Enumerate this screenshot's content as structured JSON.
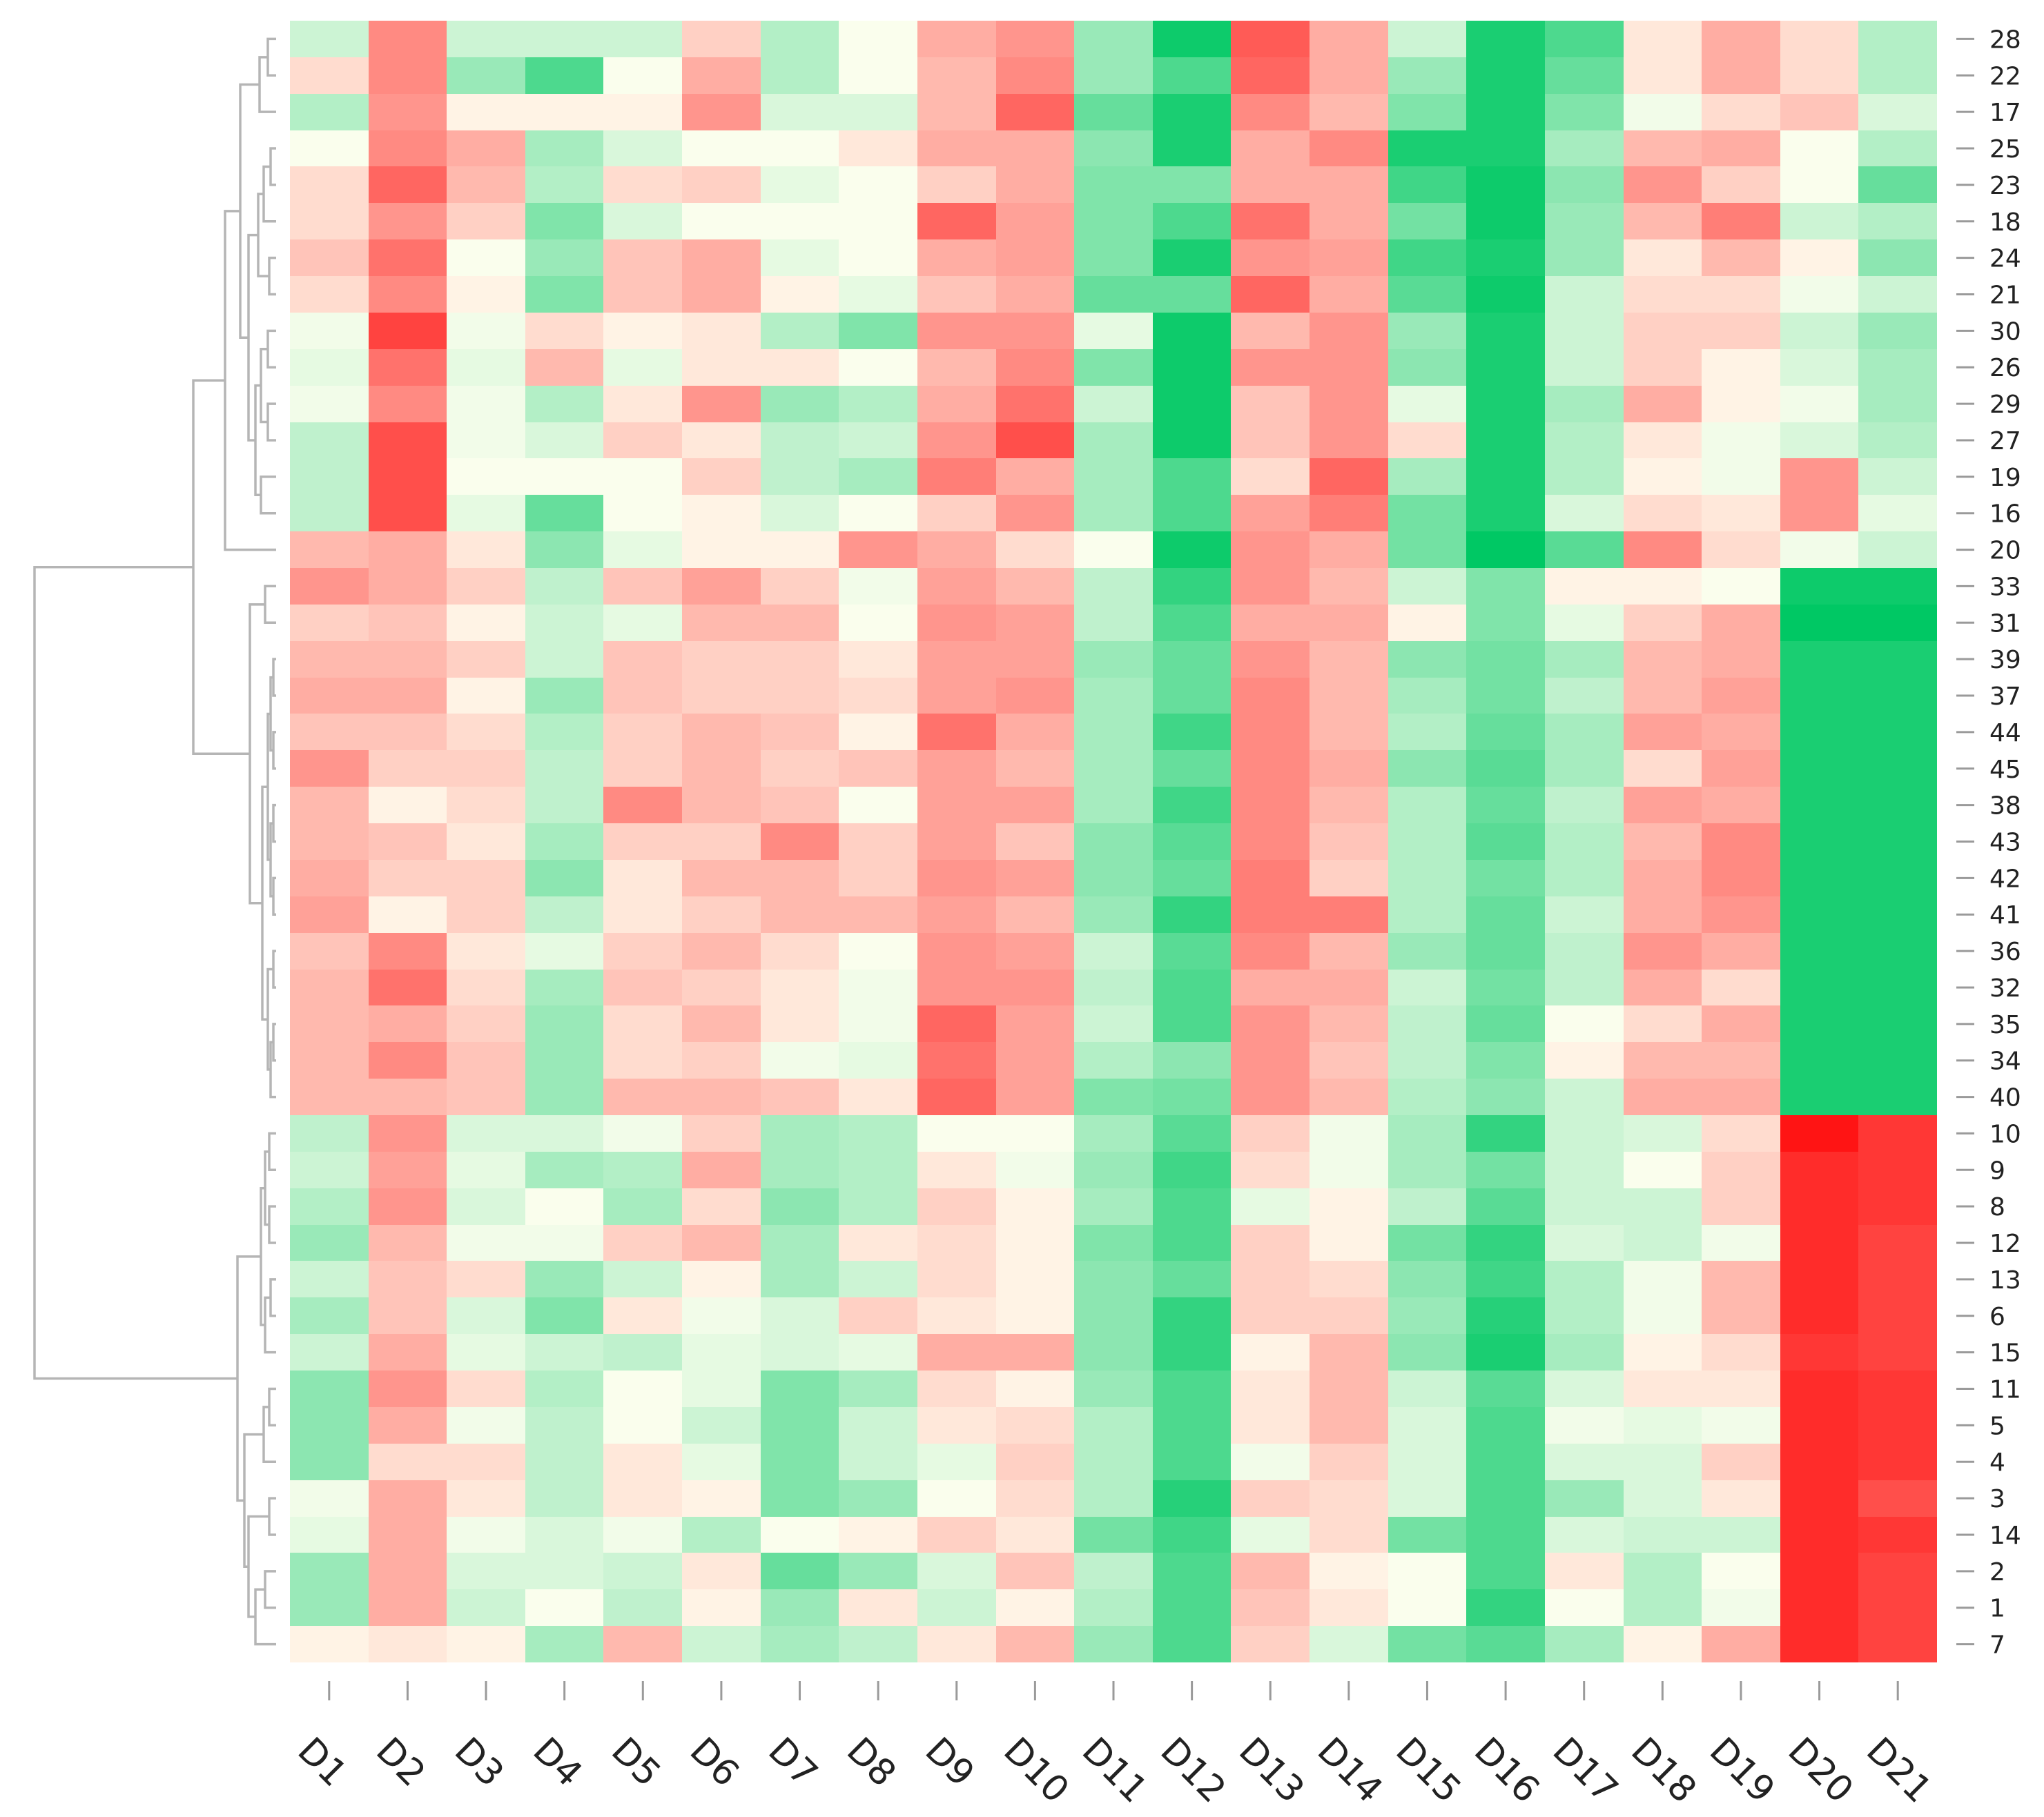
{
  "chart_data": {
    "type": "heatmap",
    "title": "",
    "xlabel": "",
    "ylabel": "",
    "legend": "none",
    "grid": false,
    "value_scale": "estimated standardized value (-1 = red, 0 = pale yellow, 1 = green)",
    "colors": {
      "low": "#ff1414",
      "mid": "#fffff0",
      "high": "#00c864"
    },
    "columns": [
      "D1",
      "D2",
      "D3",
      "D4",
      "D5",
      "D6",
      "D7",
      "D8",
      "D9",
      "D10",
      "D11",
      "D12",
      "D13",
      "D14",
      "D15",
      "D16",
      "D17",
      "D18",
      "D19",
      "D20",
      "D21"
    ],
    "rows": [
      "28",
      "22",
      "17",
      "25",
      "23",
      "18",
      "24",
      "21",
      "30",
      "26",
      "29",
      "27",
      "19",
      "16",
      "20",
      "33",
      "31",
      "39",
      "37",
      "44",
      "45",
      "38",
      "43",
      "42",
      "41",
      "36",
      "32",
      "35",
      "34",
      "40",
      "10",
      "9",
      "8",
      "12",
      "13",
      "6",
      "15",
      "11",
      "5",
      "4",
      "3",
      "14",
      "2",
      "1",
      "7"
    ],
    "values": [
      [
        0.2,
        -0.5,
        0.2,
        0.2,
        0.2,
        -0.2,
        0.3,
        0.02,
        -0.35,
        -0.45,
        0.4,
        0.95,
        -0.7,
        -0.35,
        0.2,
        0.9,
        0.7,
        -0.1,
        -0.35,
        -0.15,
        0.3
      ],
      [
        -0.15,
        -0.5,
        0.4,
        0.7,
        0.02,
        -0.35,
        0.3,
        0.02,
        -0.3,
        -0.5,
        0.4,
        0.7,
        -0.65,
        -0.35,
        0.4,
        0.9,
        0.6,
        -0.1,
        -0.35,
        -0.15,
        0.3
      ],
      [
        0.3,
        -0.45,
        -0.05,
        -0.05,
        -0.05,
        -0.45,
        0.15,
        0.15,
        -0.3,
        -0.65,
        0.6,
        0.9,
        -0.5,
        -0.3,
        0.5,
        0.9,
        0.5,
        0.05,
        -0.15,
        -0.25,
        0.15
      ],
      [
        0.02,
        -0.5,
        -0.35,
        0.35,
        0.15,
        0.02,
        0.02,
        -0.1,
        -0.35,
        -0.35,
        0.45,
        0.9,
        -0.35,
        -0.5,
        0.9,
        0.9,
        0.35,
        -0.3,
        -0.35,
        0.02,
        0.3
      ],
      [
        -0.15,
        -0.65,
        -0.3,
        0.3,
        -0.15,
        -0.2,
        0.1,
        0.02,
        -0.2,
        -0.35,
        0.5,
        0.5,
        -0.35,
        -0.35,
        0.75,
        0.95,
        0.45,
        -0.45,
        -0.2,
        0.02,
        0.6
      ],
      [
        -0.15,
        -0.45,
        -0.2,
        0.5,
        0.15,
        0.02,
        0.02,
        0.02,
        -0.65,
        -0.4,
        0.5,
        0.7,
        -0.6,
        -0.35,
        0.55,
        0.95,
        0.4,
        -0.3,
        -0.55,
        0.2,
        0.3
      ],
      [
        -0.25,
        -0.6,
        0.02,
        0.4,
        -0.25,
        -0.35,
        0.1,
        0.02,
        -0.35,
        -0.4,
        0.5,
        0.9,
        -0.45,
        -0.4,
        0.75,
        0.9,
        0.4,
        -0.1,
        -0.3,
        -0.05,
        0.45
      ],
      [
        -0.15,
        -0.5,
        -0.05,
        0.5,
        -0.25,
        -0.35,
        -0.05,
        0.1,
        -0.25,
        -0.35,
        0.6,
        0.6,
        -0.65,
        -0.35,
        0.65,
        0.95,
        0.2,
        -0.15,
        -0.15,
        0.05,
        0.2
      ],
      [
        0.05,
        -0.8,
        0.05,
        -0.15,
        -0.05,
        -0.1,
        0.3,
        0.5,
        -0.45,
        -0.45,
        0.1,
        0.95,
        -0.3,
        -0.45,
        0.4,
        0.9,
        0.2,
        -0.2,
        -0.2,
        0.2,
        0.4
      ],
      [
        0.1,
        -0.6,
        0.1,
        -0.3,
        0.1,
        -0.1,
        -0.1,
        0.02,
        -0.3,
        -0.5,
        0.5,
        0.95,
        -0.45,
        -0.45,
        0.45,
        0.9,
        0.2,
        -0.2,
        -0.05,
        0.15,
        0.35
      ],
      [
        0.05,
        -0.5,
        0.05,
        0.3,
        -0.1,
        -0.45,
        0.4,
        0.3,
        -0.35,
        -0.6,
        0.2,
        0.95,
        -0.25,
        -0.45,
        0.1,
        0.9,
        0.35,
        -0.35,
        -0.05,
        0.05,
        0.35
      ],
      [
        0.25,
        -0.75,
        0.05,
        0.15,
        -0.2,
        -0.1,
        0.25,
        0.2,
        -0.45,
        -0.75,
        0.35,
        0.95,
        -0.25,
        -0.45,
        -0.15,
        0.9,
        0.3,
        -0.1,
        0.05,
        0.15,
        0.3
      ],
      [
        0.25,
        -0.75,
        0.02,
        0.02,
        0.02,
        -0.2,
        0.25,
        0.35,
        -0.55,
        -0.35,
        0.35,
        0.7,
        -0.15,
        -0.65,
        0.35,
        0.9,
        0.3,
        -0.05,
        0.05,
        -0.45,
        0.2
      ],
      [
        0.25,
        -0.75,
        0.1,
        0.6,
        0.02,
        -0.05,
        0.15,
        0.02,
        -0.2,
        -0.45,
        0.35,
        0.7,
        -0.4,
        -0.55,
        0.55,
        0.9,
        0.15,
        -0.15,
        -0.1,
        -0.45,
        0.1
      ],
      [
        -0.3,
        -0.35,
        -0.1,
        0.45,
        0.1,
        -0.05,
        -0.05,
        -0.45,
        -0.35,
        -0.15,
        0.02,
        0.95,
        -0.45,
        -0.35,
        0.55,
        1.0,
        0.65,
        -0.5,
        -0.15,
        0.05,
        0.2
      ],
      [
        -0.45,
        -0.35,
        -0.2,
        0.25,
        -0.25,
        -0.4,
        -0.2,
        0.05,
        -0.4,
        -0.3,
        0.25,
        0.8,
        -0.45,
        -0.3,
        0.2,
        0.5,
        -0.05,
        -0.05,
        0.02,
        0.95,
        0.95
      ],
      [
        -0.2,
        -0.25,
        -0.05,
        0.2,
        0.1,
        -0.3,
        -0.3,
        0.02,
        -0.45,
        -0.4,
        0.25,
        0.7,
        -0.35,
        -0.35,
        -0.05,
        0.5,
        0.1,
        -0.2,
        -0.35,
        1.0,
        1.0
      ],
      [
        -0.3,
        -0.3,
        -0.2,
        0.2,
        -0.25,
        -0.2,
        -0.2,
        -0.1,
        -0.4,
        -0.4,
        0.4,
        0.6,
        -0.45,
        -0.3,
        0.45,
        0.55,
        0.35,
        -0.3,
        -0.35,
        0.9,
        0.9
      ],
      [
        -0.35,
        -0.35,
        -0.05,
        0.4,
        -0.25,
        -0.2,
        -0.2,
        -0.15,
        -0.4,
        -0.45,
        0.35,
        0.6,
        -0.5,
        -0.3,
        0.35,
        0.55,
        0.25,
        -0.3,
        -0.4,
        0.9,
        0.9
      ],
      [
        -0.25,
        -0.25,
        -0.15,
        0.3,
        -0.2,
        -0.3,
        -0.25,
        -0.05,
        -0.6,
        -0.35,
        0.35,
        0.75,
        -0.5,
        -0.3,
        0.3,
        0.6,
        0.35,
        -0.4,
        -0.35,
        0.9,
        0.9
      ],
      [
        -0.45,
        -0.2,
        -0.2,
        0.25,
        -0.2,
        -0.3,
        -0.2,
        -0.25,
        -0.4,
        -0.3,
        0.35,
        0.6,
        -0.5,
        -0.35,
        0.45,
        0.65,
        0.35,
        -0.15,
        -0.4,
        0.9,
        0.9
      ],
      [
        -0.3,
        -0.05,
        -0.15,
        0.25,
        -0.5,
        -0.3,
        -0.25,
        0.02,
        -0.4,
        -0.4,
        0.35,
        0.75,
        -0.5,
        -0.3,
        0.3,
        0.6,
        0.25,
        -0.4,
        -0.35,
        0.9,
        0.9
      ],
      [
        -0.3,
        -0.25,
        -0.1,
        0.35,
        -0.2,
        -0.2,
        -0.5,
        -0.2,
        -0.4,
        -0.25,
        0.45,
        0.65,
        -0.5,
        -0.25,
        0.3,
        0.65,
        0.3,
        -0.3,
        -0.5,
        0.9,
        0.9
      ],
      [
        -0.35,
        -0.2,
        -0.2,
        0.45,
        -0.1,
        -0.3,
        -0.3,
        -0.2,
        -0.45,
        -0.4,
        0.45,
        0.6,
        -0.55,
        -0.2,
        0.3,
        0.55,
        0.3,
        -0.35,
        -0.5,
        0.9,
        0.9
      ],
      [
        -0.4,
        -0.05,
        -0.2,
        0.25,
        -0.1,
        -0.2,
        -0.3,
        -0.3,
        -0.4,
        -0.3,
        0.4,
        0.8,
        -0.55,
        -0.55,
        0.3,
        0.6,
        0.2,
        -0.35,
        -0.45,
        0.9,
        0.9
      ],
      [
        -0.25,
        -0.5,
        -0.1,
        0.1,
        -0.2,
        -0.3,
        -0.15,
        0.02,
        -0.45,
        -0.4,
        0.2,
        0.65,
        -0.5,
        -0.3,
        0.4,
        0.6,
        0.25,
        -0.45,
        -0.35,
        0.9,
        0.9
      ],
      [
        -0.3,
        -0.6,
        -0.15,
        0.35,
        -0.25,
        -0.2,
        -0.1,
        0.05,
        -0.45,
        -0.45,
        0.25,
        0.7,
        -0.35,
        -0.35,
        0.2,
        0.55,
        0.25,
        -0.35,
        -0.15,
        0.9,
        0.9
      ],
      [
        -0.3,
        -0.35,
        -0.2,
        0.4,
        -0.15,
        -0.3,
        -0.1,
        0.05,
        -0.65,
        -0.4,
        0.2,
        0.7,
        -0.45,
        -0.3,
        0.25,
        0.6,
        0.02,
        -0.15,
        -0.35,
        0.9,
        0.9
      ],
      [
        -0.3,
        -0.5,
        -0.25,
        0.4,
        -0.15,
        -0.2,
        0.05,
        0.1,
        -0.6,
        -0.4,
        0.3,
        0.45,
        -0.45,
        -0.25,
        0.25,
        0.5,
        -0.05,
        -0.3,
        -0.3,
        0.9,
        0.9
      ],
      [
        -0.3,
        -0.3,
        -0.25,
        0.4,
        -0.3,
        -0.3,
        -0.25,
        -0.1,
        -0.65,
        -0.4,
        0.5,
        0.55,
        -0.45,
        -0.3,
        0.3,
        0.45,
        0.2,
        -0.35,
        -0.35,
        0.9,
        0.9
      ],
      [
        0.25,
        -0.45,
        0.15,
        0.15,
        0.05,
        -0.2,
        0.35,
        0.3,
        0.02,
        0.02,
        0.35,
        0.65,
        -0.2,
        0.05,
        0.35,
        0.8,
        0.2,
        0.15,
        -0.15,
        -1.0,
        -0.85
      ],
      [
        0.2,
        -0.4,
        0.1,
        0.35,
        0.3,
        -0.35,
        0.35,
        0.3,
        -0.1,
        0.05,
        0.4,
        0.75,
        -0.15,
        0.05,
        0.35,
        0.55,
        0.2,
        0.02,
        -0.2,
        -0.9,
        -0.85
      ],
      [
        0.3,
        -0.45,
        0.15,
        0.02,
        0.35,
        -0.15,
        0.45,
        0.3,
        -0.2,
        -0.05,
        0.35,
        0.7,
        0.1,
        -0.05,
        0.25,
        0.65,
        0.2,
        0.2,
        -0.2,
        -0.9,
        -0.85
      ],
      [
        0.4,
        -0.3,
        0.05,
        0.05,
        -0.2,
        -0.3,
        0.35,
        -0.1,
        -0.15,
        -0.05,
        0.5,
        0.7,
        -0.2,
        -0.05,
        0.55,
        0.8,
        0.15,
        0.2,
        0.05,
        -0.9,
        -0.8
      ],
      [
        0.2,
        -0.25,
        -0.15,
        0.4,
        0.2,
        -0.05,
        0.35,
        0.2,
        -0.15,
        -0.05,
        0.45,
        0.6,
        -0.2,
        -0.15,
        0.45,
        0.75,
        0.3,
        0.05,
        -0.3,
        -0.9,
        -0.8
      ],
      [
        0.35,
        -0.25,
        0.15,
        0.5,
        -0.1,
        0.05,
        0.15,
        -0.2,
        -0.1,
        -0.05,
        0.45,
        0.8,
        -0.2,
        -0.2,
        0.4,
        0.85,
        0.3,
        0.05,
        -0.3,
        -0.9,
        -0.8
      ],
      [
        0.2,
        -0.35,
        0.1,
        0.2,
        0.25,
        0.1,
        0.15,
        0.1,
        -0.35,
        -0.35,
        0.45,
        0.8,
        -0.05,
        -0.3,
        0.45,
        0.9,
        0.35,
        -0.05,
        -0.15,
        -0.85,
        -0.8
      ],
      [
        0.45,
        -0.45,
        -0.15,
        0.3,
        0.02,
        0.1,
        0.5,
        0.35,
        -0.15,
        -0.05,
        0.4,
        0.7,
        -0.1,
        -0.3,
        0.2,
        0.65,
        0.15,
        -0.1,
        -0.1,
        -0.9,
        -0.85
      ],
      [
        0.45,
        -0.35,
        0.05,
        0.25,
        0.02,
        0.2,
        0.5,
        0.2,
        -0.1,
        -0.15,
        0.3,
        0.7,
        -0.1,
        -0.3,
        0.15,
        0.7,
        0.05,
        0.1,
        0.05,
        -0.9,
        -0.85
      ],
      [
        0.45,
        -0.15,
        -0.15,
        0.25,
        -0.1,
        0.1,
        0.5,
        0.2,
        0.1,
        -0.2,
        0.3,
        0.7,
        0.05,
        -0.2,
        0.15,
        0.7,
        0.15,
        0.15,
        -0.2,
        -0.9,
        -0.85
      ],
      [
        0.05,
        -0.35,
        -0.1,
        0.25,
        -0.1,
        -0.05,
        0.5,
        0.4,
        0.02,
        -0.15,
        0.3,
        0.85,
        -0.2,
        -0.15,
        0.15,
        0.7,
        0.4,
        0.15,
        -0.1,
        -0.9,
        -0.75
      ],
      [
        0.1,
        -0.35,
        0.05,
        0.15,
        0.05,
        0.3,
        0.02,
        -0.05,
        -0.2,
        -0.1,
        0.55,
        0.75,
        0.1,
        -0.15,
        0.55,
        0.7,
        0.15,
        0.2,
        0.2,
        -0.9,
        -0.85
      ],
      [
        0.4,
        -0.35,
        0.15,
        0.15,
        0.2,
        -0.1,
        0.6,
        0.4,
        0.15,
        -0.25,
        0.25,
        0.7,
        -0.3,
        -0.05,
        0.02,
        0.7,
        -0.1,
        0.3,
        0.02,
        -0.9,
        -0.8
      ],
      [
        0.4,
        -0.35,
        0.2,
        0.02,
        0.25,
        -0.05,
        0.4,
        -0.1,
        0.2,
        -0.05,
        0.3,
        0.7,
        -0.25,
        -0.1,
        0.02,
        0.8,
        0.02,
        0.3,
        0.05,
        -0.9,
        -0.8
      ],
      [
        -0.05,
        -0.1,
        -0.05,
        0.35,
        -0.3,
        0.2,
        0.35,
        0.25,
        -0.1,
        -0.3,
        0.4,
        0.7,
        -0.2,
        0.15,
        0.55,
        0.65,
        0.35,
        -0.05,
        -0.35,
        -0.9,
        -0.8
      ]
    ]
  }
}
